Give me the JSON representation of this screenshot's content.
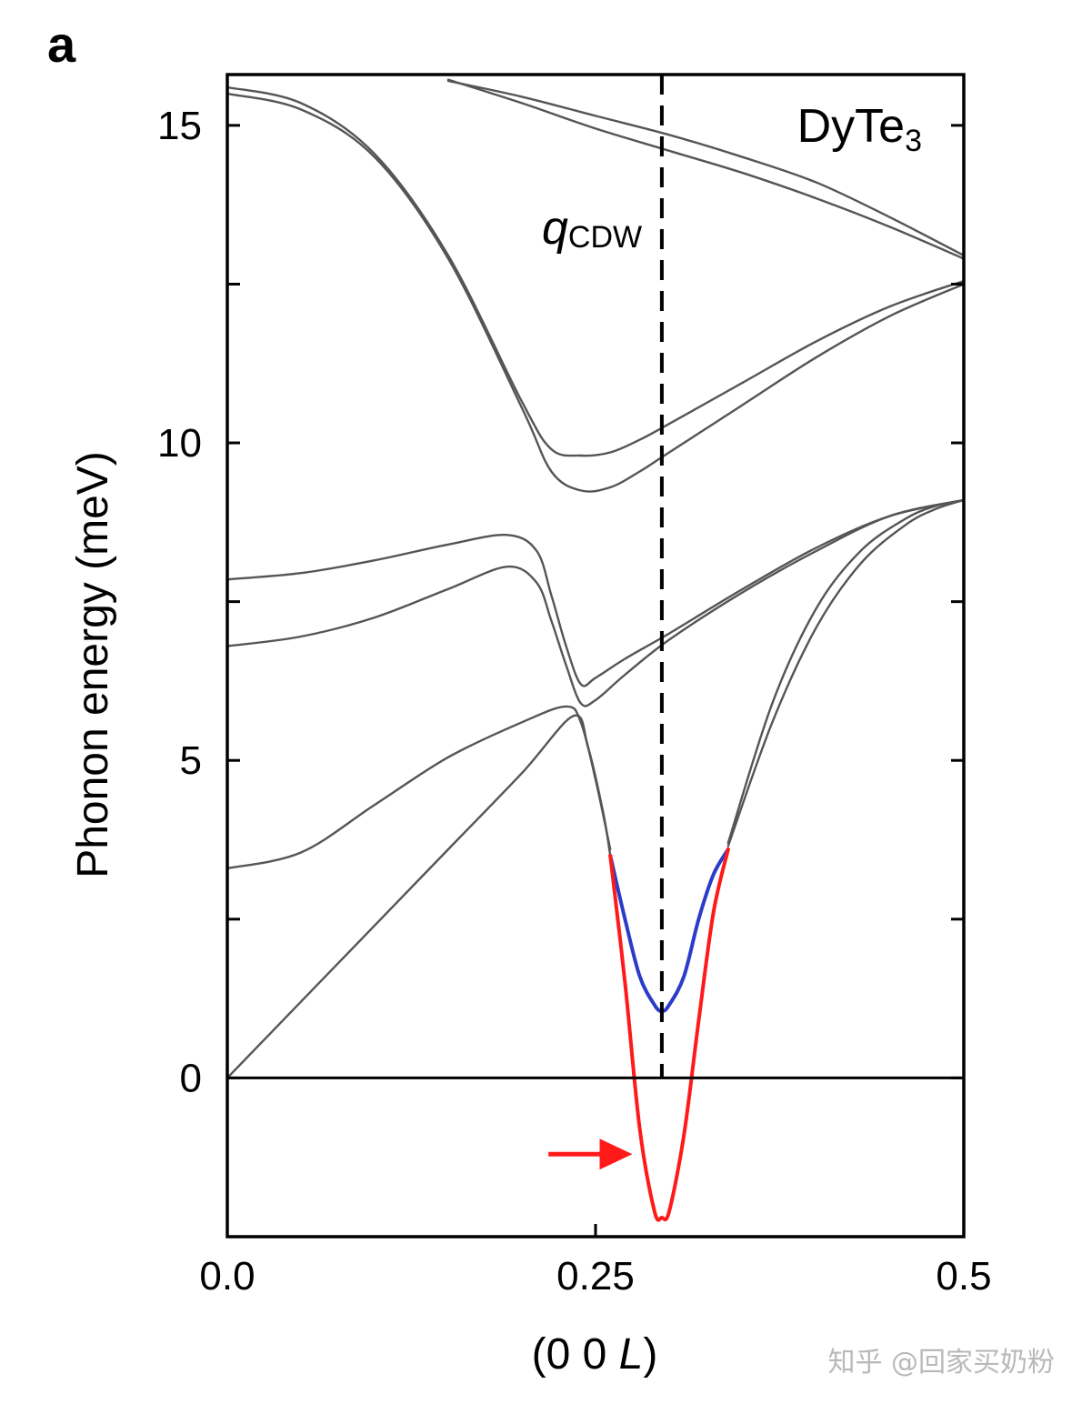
{
  "panel_label": "a",
  "watermark": "知乎 @回家买奶粉",
  "colors": {
    "axis": "#000000",
    "curve": "#555555",
    "mode_blue": "#2a3cc8",
    "mode_red": "#ff1a1a",
    "dashed": "#000000"
  },
  "chart_data": {
    "type": "line",
    "title": "",
    "material": {
      "base": "DyTe",
      "sub": "3"
    },
    "xlabel": {
      "prefix": "(0 0 ",
      "var": "L",
      "suffix": ")"
    },
    "ylabel": "Phonon energy (meV)",
    "xlim": [
      0.0,
      0.5
    ],
    "ylim": [
      -2.5,
      15.8
    ],
    "xticks": [
      0.0,
      0.25,
      0.5
    ],
    "xtick_labels": [
      "0.0",
      "0.25",
      "0.5"
    ],
    "yticks": [
      0,
      5,
      10,
      15
    ],
    "ytick_labels": [
      "0",
      "5",
      "10",
      "15"
    ],
    "yminor_ticks": [
      2.5,
      7.5,
      12.5
    ],
    "grid": false,
    "q_cdw": {
      "x": 0.295,
      "label_main": "q",
      "label_sub": "CDW"
    },
    "arrow": {
      "from_x": 0.218,
      "to_x": 0.275,
      "y": -1.2
    },
    "series": [
      {
        "style": "gray",
        "x": [
          0.0,
          0.05,
          0.1,
          0.15,
          0.2,
          0.22,
          0.24,
          0.26,
          0.28,
          0.3,
          0.35,
          0.4,
          0.45,
          0.5
        ],
        "y": [
          15.6,
          15.35,
          14.55,
          12.95,
          10.65,
          9.9,
          9.8,
          9.85,
          10.05,
          10.3,
          10.95,
          11.6,
          12.15,
          12.55
        ]
      },
      {
        "style": "gray",
        "x": [
          0.0,
          0.05,
          0.1,
          0.15,
          0.2,
          0.22,
          0.24,
          0.26,
          0.28,
          0.3,
          0.35,
          0.4,
          0.45,
          0.5
        ],
        "y": [
          15.5,
          15.25,
          14.5,
          12.9,
          10.55,
          9.55,
          9.25,
          9.3,
          9.55,
          9.85,
          10.6,
          11.35,
          12.0,
          12.5
        ]
      },
      {
        "style": "gray",
        "x": [
          0.15,
          0.2,
          0.25,
          0.3,
          0.35,
          0.4,
          0.45,
          0.5
        ],
        "y": [
          15.7,
          15.45,
          15.15,
          14.85,
          14.5,
          14.1,
          13.55,
          12.95
        ]
      },
      {
        "style": "gray",
        "x": [
          0.15,
          0.2,
          0.25,
          0.3,
          0.35,
          0.4,
          0.45,
          0.5
        ],
        "y": [
          15.72,
          15.35,
          14.95,
          14.6,
          14.25,
          13.85,
          13.4,
          12.9
        ]
      },
      {
        "style": "gray",
        "x": [
          0.0,
          0.05,
          0.1,
          0.15,
          0.19,
          0.21,
          0.22,
          0.23,
          0.24,
          0.25,
          0.27,
          0.3,
          0.35,
          0.4,
          0.45,
          0.5
        ],
        "y": [
          7.85,
          7.95,
          8.15,
          8.4,
          8.55,
          8.3,
          7.6,
          6.8,
          6.2,
          6.3,
          6.6,
          7.0,
          7.7,
          8.35,
          8.85,
          9.1
        ]
      },
      {
        "style": "gray",
        "x": [
          0.0,
          0.05,
          0.1,
          0.15,
          0.19,
          0.21,
          0.22,
          0.23,
          0.24,
          0.25,
          0.27,
          0.3,
          0.35,
          0.4,
          0.45,
          0.5
        ],
        "y": [
          6.8,
          6.95,
          7.25,
          7.7,
          8.05,
          7.8,
          7.2,
          6.5,
          5.9,
          5.95,
          6.35,
          6.9,
          7.65,
          8.3,
          8.85,
          9.1
        ]
      },
      {
        "style": "gray",
        "x": [
          0.0,
          0.05,
          0.1,
          0.15,
          0.2,
          0.23,
          0.24,
          0.25,
          0.26
        ],
        "y": [
          3.3,
          3.55,
          4.3,
          5.05,
          5.6,
          5.85,
          5.6,
          4.7,
          3.6
        ]
      },
      {
        "style": "gray",
        "x": [
          0.0,
          0.05,
          0.1,
          0.15,
          0.2,
          0.235,
          0.245,
          0.255,
          0.26
        ],
        "y": [
          0.0,
          1.2,
          2.4,
          3.6,
          4.8,
          5.7,
          5.2,
          4.2,
          3.5
        ]
      },
      {
        "style": "gray",
        "x": [
          0.34,
          0.37,
          0.4,
          0.43,
          0.46,
          0.48,
          0.5
        ],
        "y": [
          3.7,
          5.9,
          7.4,
          8.3,
          8.8,
          9.0,
          9.1
        ]
      },
      {
        "style": "gray",
        "x": [
          0.34,
          0.37,
          0.4,
          0.43,
          0.46,
          0.48,
          0.5
        ],
        "y": [
          3.65,
          5.6,
          7.1,
          8.1,
          8.7,
          8.95,
          9.1
        ]
      },
      {
        "style": "blue",
        "x": [
          0.26,
          0.27,
          0.28,
          0.29,
          0.295,
          0.3,
          0.31,
          0.32,
          0.33,
          0.34
        ],
        "y": [
          3.5,
          2.5,
          1.6,
          1.15,
          1.05,
          1.15,
          1.6,
          2.5,
          3.2,
          3.6
        ]
      },
      {
        "style": "red",
        "x": [
          0.26,
          0.27,
          0.28,
          0.29,
          0.295,
          0.3,
          0.31,
          0.32,
          0.33,
          0.34
        ],
        "y": [
          3.5,
          1.5,
          -0.8,
          -2.1,
          -2.2,
          -2.1,
          -0.9,
          0.9,
          2.6,
          3.6
        ]
      }
    ]
  }
}
